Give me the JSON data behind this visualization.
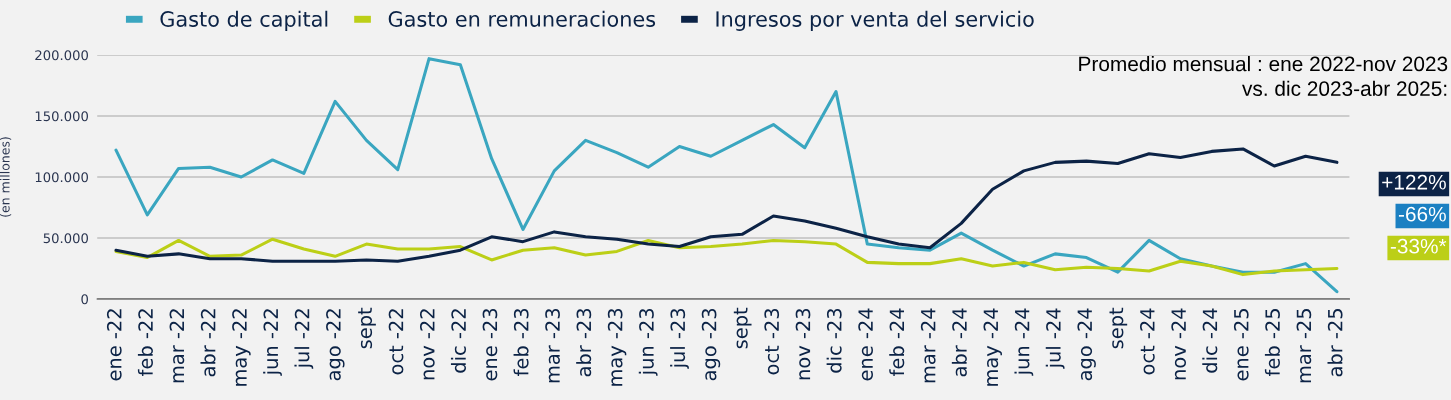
{
  "chart_data": {
    "type": "line",
    "categories": [
      "ene -22",
      "feb -22",
      "mar -22",
      "abr -22",
      "may -22",
      "jun -22",
      "jul -22",
      "ago -22",
      "sept",
      "oct -22",
      "nov -22",
      "dic -22",
      "ene -23",
      "feb -23",
      "mar -23",
      "abr -23",
      "may -23",
      "jun -23",
      "jul -23",
      "ago -23",
      "sept",
      "oct -23",
      "nov -23",
      "dic -23",
      "ene -24",
      "feb -24",
      "mar -24",
      "abr -24",
      "may -24",
      "jun -24",
      "jul -24",
      "ago -24",
      "sept",
      "oct -24",
      "nov -24",
      "dic -24",
      "ene -25",
      "feb -25",
      "mar -25",
      "abr -25"
    ],
    "series": [
      {
        "name": "Gasto de capital",
        "color": "#3aa6c0",
        "values": [
          122000,
          69000,
          107000,
          108000,
          100000,
          114000,
          103000,
          162000,
          130000,
          106000,
          197000,
          192000,
          115000,
          57000,
          105000,
          130000,
          120000,
          108000,
          125000,
          117000,
          130000,
          143000,
          124000,
          170000,
          45000,
          42000,
          40000,
          54000,
          40000,
          27000,
          37000,
          34000,
          22000,
          48000,
          33000,
          27000,
          22000,
          22000,
          29000,
          6000
        ]
      },
      {
        "name": "Gasto en remuneraciones",
        "color": "#bccf17",
        "values": [
          39000,
          34000,
          48000,
          35000,
          36000,
          49000,
          41000,
          35000,
          45000,
          41000,
          41000,
          43000,
          32000,
          40000,
          42000,
          36000,
          39000,
          48000,
          42000,
          43000,
          45000,
          48000,
          47000,
          45000,
          30000,
          29000,
          29000,
          33000,
          27000,
          30000,
          24000,
          26000,
          25000,
          23000,
          31000,
          27000,
          20000,
          23000,
          24000,
          25000
        ]
      },
      {
        "name": "Ingresos por venta del servicio",
        "color": "#0c2346",
        "values": [
          40000,
          35000,
          37000,
          33000,
          33000,
          31000,
          31000,
          31000,
          32000,
          31000,
          35000,
          40000,
          51000,
          47000,
          55000,
          51000,
          49000,
          45000,
          43000,
          51000,
          53000,
          68000,
          64000,
          58000,
          51000,
          45000,
          42000,
          62000,
          90000,
          105000,
          112000,
          113000,
          111000,
          119000,
          116000,
          121000,
          123000,
          109000,
          117000,
          112000
        ]
      }
    ],
    "ylabel": "(en millones)",
    "ylim": [
      0,
      200000
    ],
    "yticks": [
      {
        "value": 0,
        "label": "0"
      },
      {
        "value": 50000,
        "label": "50.000"
      },
      {
        "value": 100000,
        "label": "100.000"
      },
      {
        "value": 150000,
        "label": "150.000"
      },
      {
        "value": 200000,
        "label": "200.000"
      }
    ],
    "grid": "y",
    "legend": "top",
    "marker": "none",
    "line_style": "solid",
    "annotations": [
      "Promedio mensual : ene 2022-nov 2023\nvs. dic 2023-abr 2025:",
      "+122%",
      "-66%",
      "-33%*"
    ]
  }
}
